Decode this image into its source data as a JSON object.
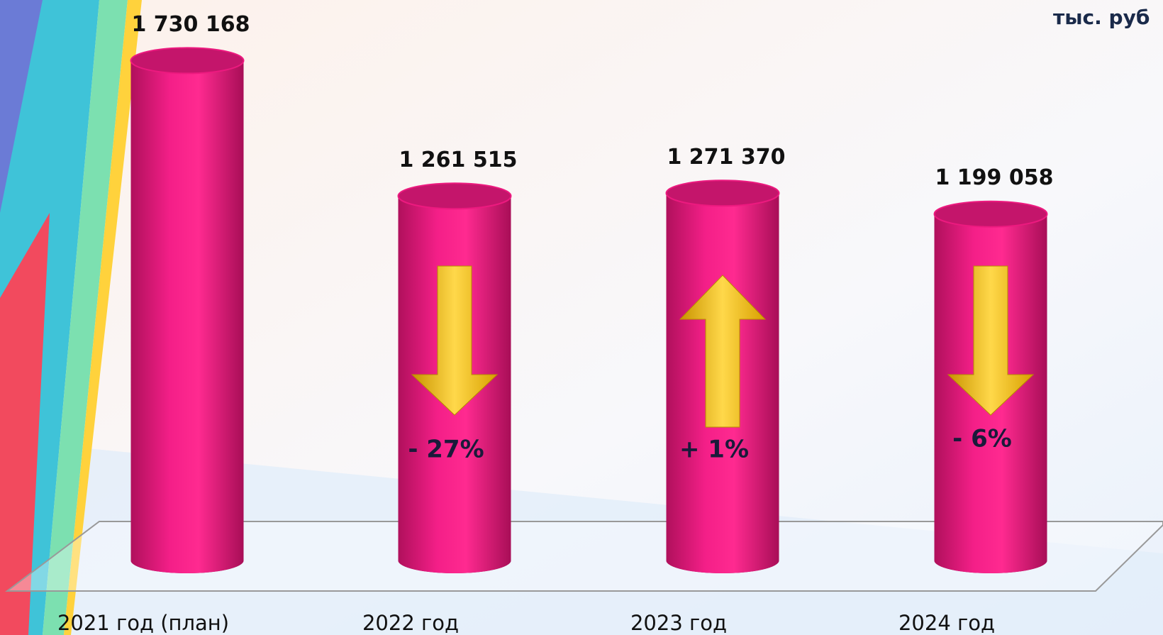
{
  "chart_data": {
    "type": "bar",
    "unit": "тыс. руб",
    "categories": [
      "2021 год (план)",
      "2022 год",
      "2023 год",
      "2024 год"
    ],
    "values": [
      1730168,
      1261515,
      1271370,
      1199058
    ],
    "value_labels": [
      "1 730 168",
      "1 261 515",
      "1 271 370",
      "1 199 058"
    ],
    "change_labels": [
      null,
      "- 27%",
      "+ 1%",
      "- 6%"
    ],
    "color": "#ec1a7f",
    "ylim": [
      0,
      1800000
    ]
  }
}
